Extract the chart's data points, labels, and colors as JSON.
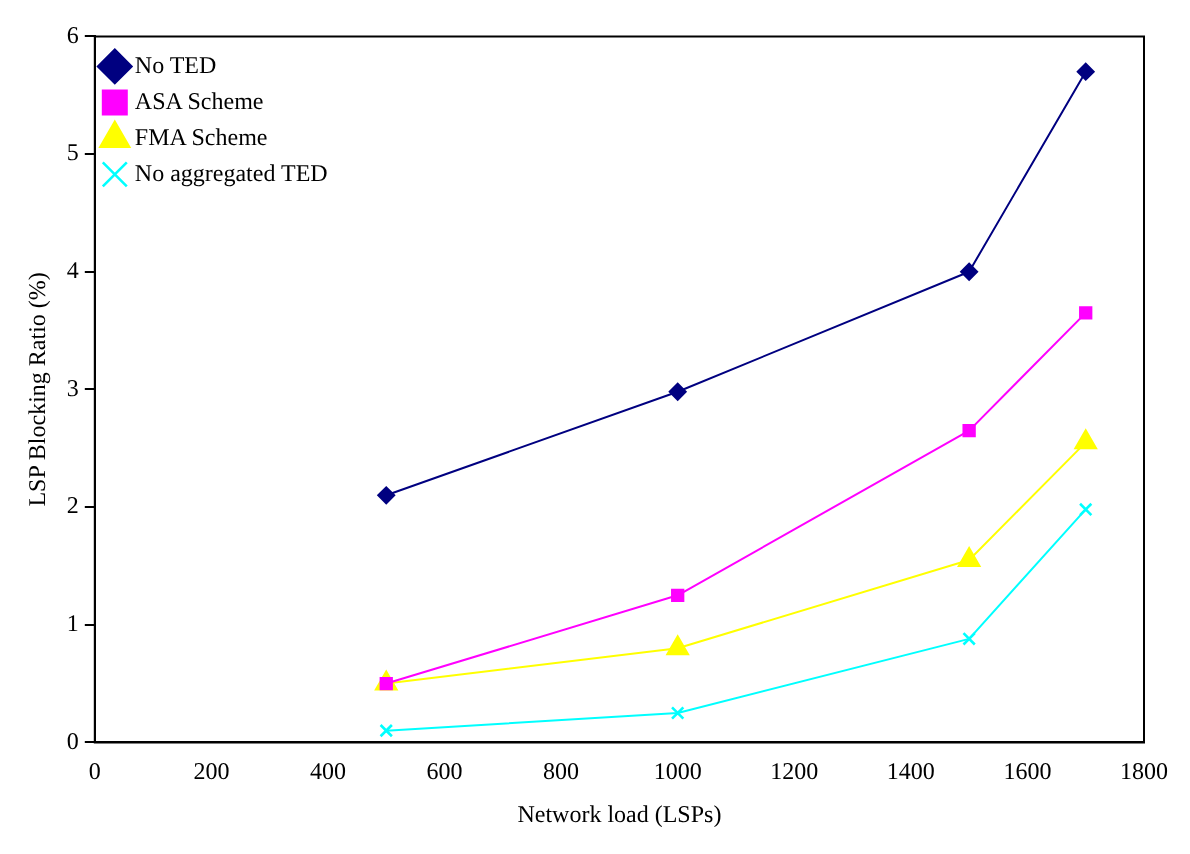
{
  "chart_data": {
    "type": "line",
    "xlabel": "Network load (LSPs)",
    "ylabel": "LSP Blocking Ratio (%)",
    "x": [
      500,
      1000,
      1500,
      1700
    ],
    "series": [
      {
        "name": "No TED",
        "color": "#000080",
        "marker": "diamond",
        "values": [
          2.1,
          2.98,
          4.0,
          5.7
        ]
      },
      {
        "name": "ASA Scheme",
        "color": "#ff00ff",
        "marker": "square",
        "values": [
          0.5,
          1.25,
          2.65,
          3.65
        ]
      },
      {
        "name": "FMA Scheme",
        "color": "#ffff00",
        "marker": "triangle",
        "values": [
          0.5,
          0.8,
          1.55,
          2.55
        ]
      },
      {
        "name": "No aggregated TED",
        "color": "#00ffff",
        "marker": "cross",
        "values": [
          0.1,
          0.25,
          0.88,
          1.98
        ]
      }
    ],
    "xlim": [
      0,
      1800
    ],
    "xticks": [
      0,
      200,
      400,
      600,
      800,
      1000,
      1200,
      1400,
      1600,
      1800
    ],
    "ylim": [
      0,
      6
    ],
    "yticks": [
      0,
      1,
      2,
      3,
      4,
      5,
      6
    ],
    "grid": false,
    "legend": "top left",
    "line_style": "solid"
  }
}
